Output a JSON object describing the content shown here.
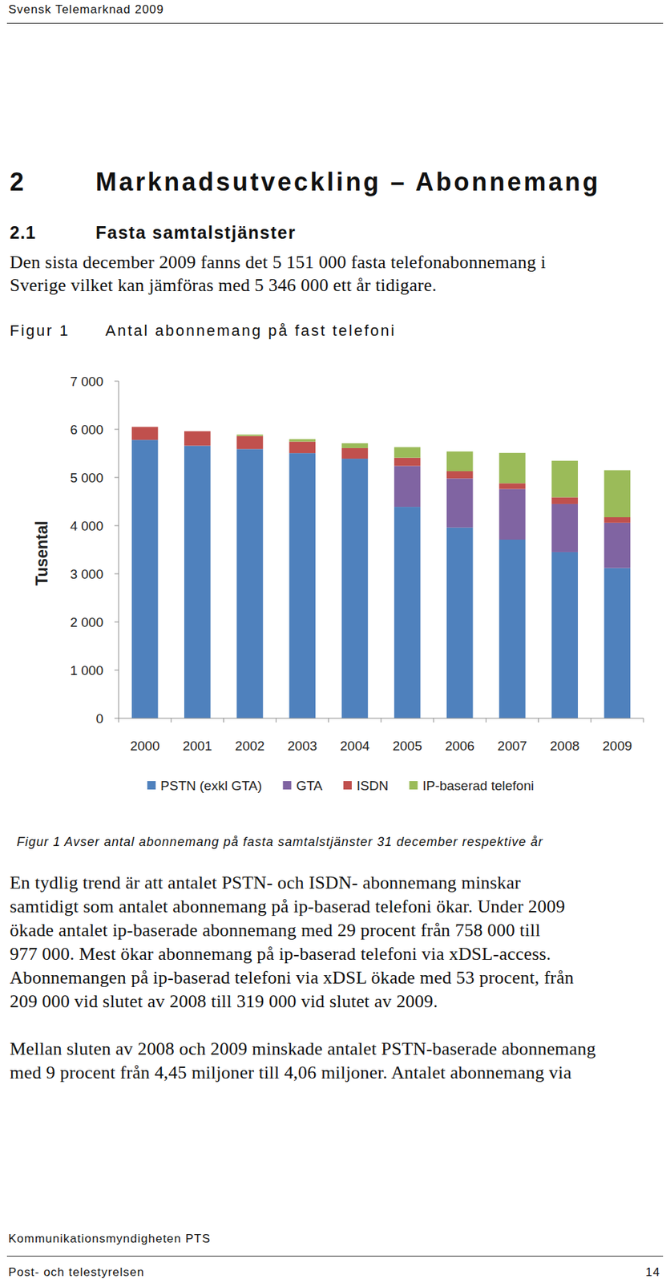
{
  "page": {
    "header": "Svensk Telemarknad 2009",
    "heading_number": "2",
    "heading": "Marknadsutveckling – Abonnemang",
    "subheading_number": "2.1",
    "subheading": "Fasta samtalstjänster",
    "intro": [
      "Den sista december 2009 fanns det 5 151 000 fasta telefonabonnemang i",
      "Sverige vilket kan jämföras med 5 346 000 ett år tidigare."
    ],
    "figure_label": "Figur 1",
    "caption": "Figur 1 Avser antal abonnemang på fasta samtalstjänster 31 december respektive år",
    "paragraph_1": [
      "En tydlig trend är att antalet PSTN- och ISDN- abonnemang minskar",
      "samtidigt som antalet abonnemang på ip-baserad telefoni ökar. Under 2009",
      "ökade antalet ip-baserade abonnemang med 29 procent från 758 000 till",
      "977 000. Mest ökar abonnemang på ip-baserad telefoni via xDSL-access.",
      "Abonnemangen på ip-baserad telefoni via xDSL ökade med 53 procent, från",
      "209 000 vid slutet av 2008 till 319 000 vid slutet av 2009."
    ],
    "paragraph_2": [
      "Mellan sluten av 2008 och 2009 minskade antalet PSTN-baserade abonnemang",
      "med 9 procent från 4,45 miljoner till 4,06 miljoner. Antalet abonnemang via"
    ],
    "footer_top": "Kommunikationsmyndigheten PTS",
    "footer_left": "Post- och telestyrelsen",
    "page_number": "14"
  },
  "chart_data": {
    "type": "bar",
    "stacked": true,
    "title": "Antal abonnemang på fast telefoni",
    "y_label": "Tusental",
    "categories": [
      "2000",
      "2001",
      "2002",
      "2003",
      "2004",
      "2005",
      "2006",
      "2007",
      "2008",
      "2009"
    ],
    "series": [
      {
        "name": "PSTN (exkl GTA)",
        "color": "#4f81bd",
        "values": [
          5780,
          5660,
          5590,
          5505,
          5390,
          4390,
          3960,
          3710,
          3450,
          3120
        ]
      },
      {
        "name": "GTA",
        "color": "#8064a2",
        "values": [
          0,
          0,
          0,
          0,
          0,
          850,
          1020,
          1050,
          1000,
          940
        ]
      },
      {
        "name": "ISDN",
        "color": "#c0504d",
        "values": [
          270,
          300,
          270,
          240,
          220,
          170,
          150,
          120,
          138,
          114
        ]
      },
      {
        "name": "IP-baserad telefoni",
        "color": "#9bbb59",
        "values": [
          0,
          0,
          30,
          50,
          100,
          220,
          410,
          630,
          758,
          977
        ]
      }
    ],
    "ylim": [
      0,
      7000
    ],
    "yticks": [
      0,
      {
        "value": 1000,
        "label": "1 000"
      },
      {
        "value": 2000,
        "label": "2 000"
      },
      {
        "value": 3000,
        "label": "3 000"
      },
      {
        "value": 4000,
        "label": "4 000"
      },
      {
        "value": 5000,
        "label": "5 000"
      },
      {
        "value": 6000,
        "label": "6 000"
      },
      {
        "value": 7000,
        "label": "7 000"
      }
    ],
    "grid": false,
    "legend": "bottom"
  }
}
